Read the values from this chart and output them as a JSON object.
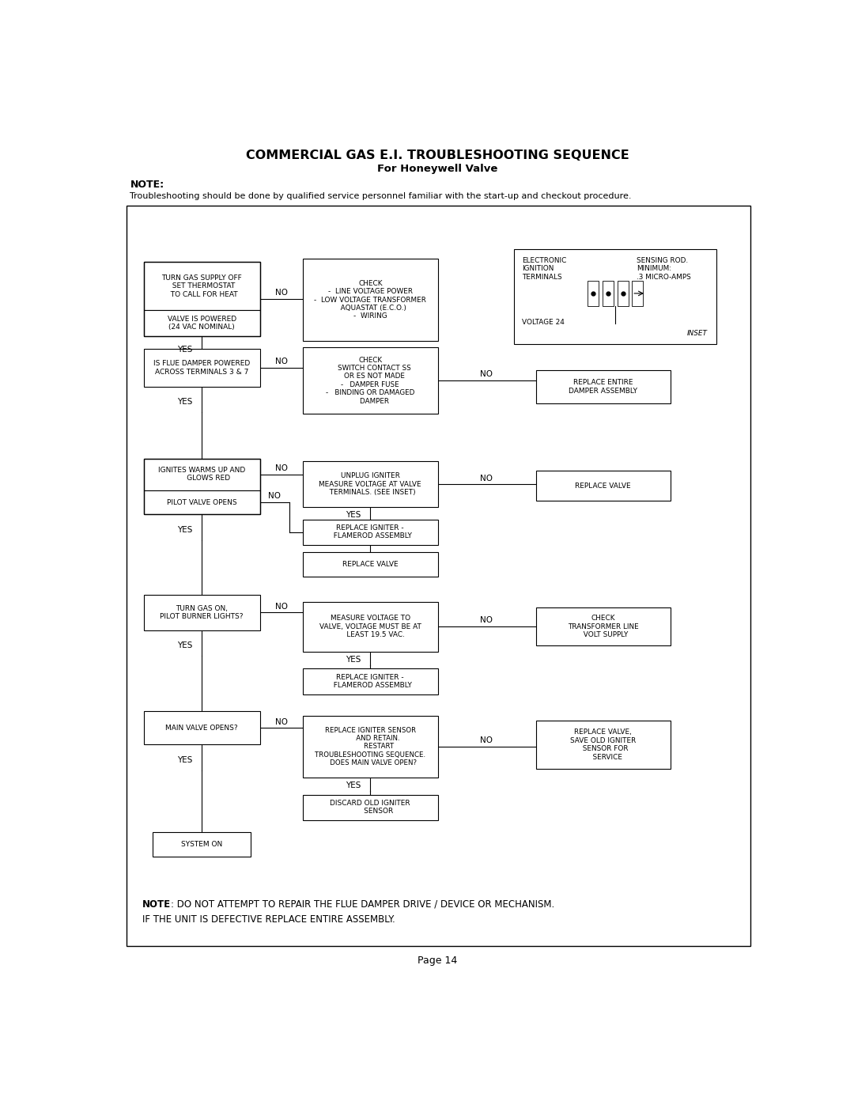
{
  "title_line1": "COMMERCIAL GAS E.I. TROUBLESHOOTING SEQUENCE",
  "title_line2": "For Honeywell Valve",
  "note_label": "NOTE:",
  "note_text": "Troubleshooting should be done by qualified service personnel familiar with the start-up and checkout procedure.",
  "footer_note_bold": "NOTE",
  "footer_note_rest": ": DO NOT ATTEMPT TO REPAIR THE FLUE DAMPER DRIVE / DEVICE OR MECHANISM.",
  "footer_note_line2": "IF THE UNIT IS DEFECTIVE REPLACE ENTIRE ASSEMBLY.",
  "page": "Page 14",
  "bg_color": "#ffffff",
  "box_color": "#000000",
  "text_color": "#000000"
}
